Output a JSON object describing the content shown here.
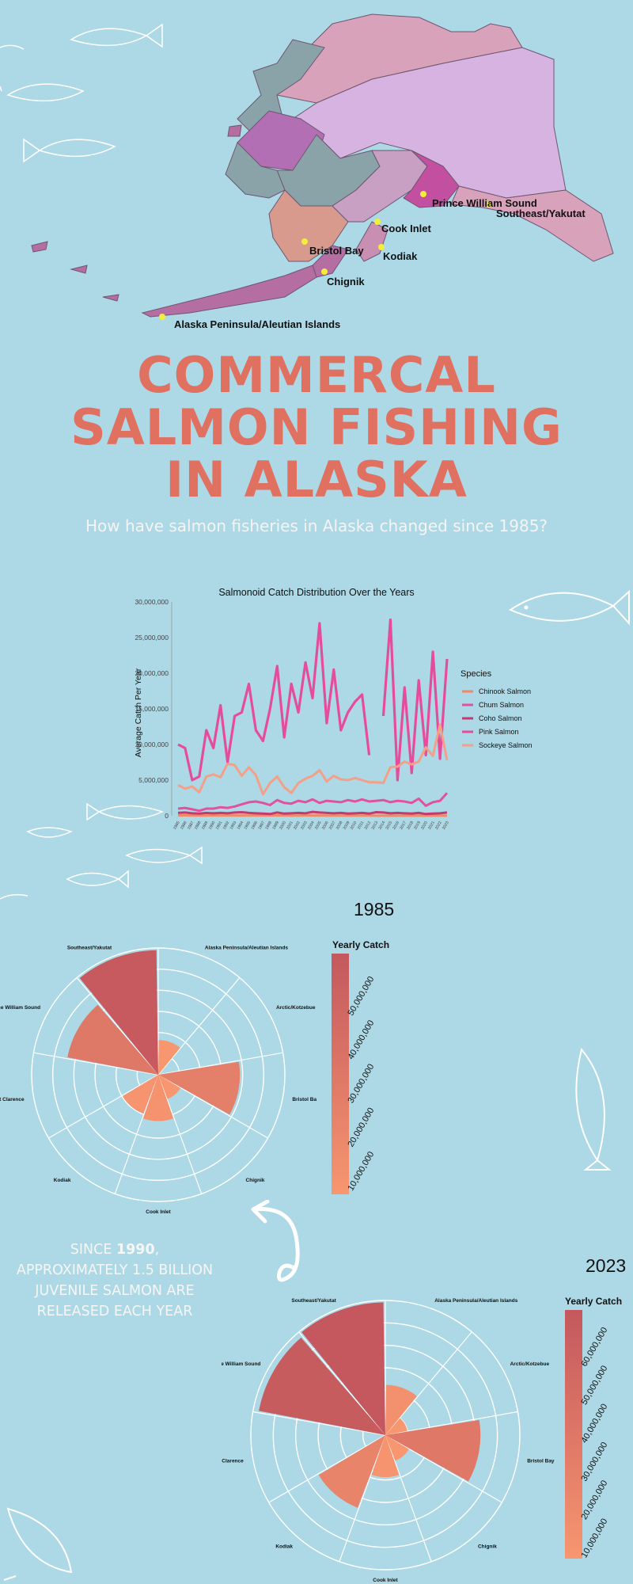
{
  "map": {
    "regions": [
      {
        "name": "Prince William Sound",
        "color": "#c34fa0"
      },
      {
        "name": "Southeast/Yakutat",
        "color": "#d9a2bb"
      },
      {
        "name": "Cook Inlet",
        "color": "#c7a0c4"
      },
      {
        "name": "Bristol Bay",
        "color": "#d99a8e"
      },
      {
        "name": "Kodiak",
        "color": "#c98fb2"
      },
      {
        "name": "Chignik",
        "color": "#b56ea1"
      },
      {
        "name": "Alaska Peninsula/Aleutian Islands",
        "color": "#b56ea1"
      }
    ],
    "marker_color": "#f3ef39"
  },
  "title": {
    "line1": "COMMERCAL",
    "line2": "SALMON FISHING",
    "line3": "IN ALASKA",
    "subtitle": "How have salmon fisheries in Alaska changed since 1985?",
    "color": "#e07060"
  },
  "side_note": {
    "prefix": "SINCE ",
    "year": "1990",
    "rest": ", APPROXIMATELY 1.5 BILLION JUVENILE SALMON ARE RELEASED EACH YEAR"
  },
  "chart_data": [
    {
      "type": "line",
      "title": "Salmonoid Catch Distribution Over the Years",
      "ylabel": "Average Catch Per Year",
      "xlabel": "",
      "legend_title": "Species",
      "legend_position": "right",
      "ylim": [
        0,
        30000000
      ],
      "yticks": [
        "0",
        "5,000,000",
        "10,000,000",
        "15,000,000",
        "20,000,000",
        "25,000,000",
        "30,000,000"
      ],
      "x": [
        1985,
        1986,
        1987,
        1988,
        1989,
        1990,
        1991,
        1992,
        1993,
        1994,
        1995,
        1996,
        1997,
        1998,
        1999,
        2000,
        2001,
        2002,
        2003,
        2004,
        2005,
        2006,
        2007,
        2008,
        2009,
        2010,
        2011,
        2012,
        2013,
        2014,
        2015,
        2016,
        2017,
        2018,
        2019,
        2020,
        2021,
        2022,
        2023
      ],
      "series": [
        {
          "name": "Chinook Salmon",
          "color": "#f08a64",
          "values": [
            60000,
            60000,
            50000,
            50000,
            50000,
            55000,
            50000,
            50000,
            50000,
            45000,
            45000,
            40000,
            45000,
            40000,
            40000,
            40000,
            35000,
            35000,
            40000,
            45000,
            40000,
            30000,
            30000,
            25000,
            25000,
            20000,
            25000,
            20000,
            15000,
            15000,
            15000,
            15000,
            15000,
            10000,
            10000,
            10000,
            10000,
            10000,
            10000
          ]
        },
        {
          "name": "Chum Salmon",
          "color": "#e052a0",
          "values": [
            1000000,
            1100000,
            900000,
            700000,
            1000000,
            1000000,
            1200000,
            1100000,
            1300000,
            1600000,
            1900000,
            2000000,
            1800000,
            1500000,
            2200000,
            1800000,
            1700000,
            2100000,
            1900000,
            2300000,
            1800000,
            2100000,
            2000000,
            1900000,
            2200000,
            2000000,
            2300000,
            2000000,
            2100000,
            2200000,
            1900000,
            2100000,
            2000000,
            1800000,
            2400000,
            1400000,
            1900000,
            2100000,
            3200000
          ]
        },
        {
          "name": "Coho Salmon",
          "color": "#c43a70",
          "values": [
            400000,
            450000,
            350000,
            300000,
            400000,
            350000,
            400000,
            350000,
            450000,
            500000,
            400000,
            350000,
            300000,
            250000,
            450000,
            300000,
            350000,
            400000,
            350000,
            550000,
            450000,
            400000,
            350000,
            400000,
            300000,
            350000,
            400000,
            300000,
            500000,
            450000,
            350000,
            400000,
            350000,
            300000,
            400000,
            250000,
            300000,
            350000,
            450000
          ]
        },
        {
          "name": "Pink Salmon",
          "color": "#e64c9c",
          "values": [
            10000000,
            9500000,
            5000000,
            5500000,
            12000000,
            9500000,
            15500000,
            7500000,
            14000000,
            14500000,
            18500000,
            12000000,
            10500000,
            15000000,
            21000000,
            11000000,
            18500000,
            14500000,
            21500000,
            16500000,
            27000000,
            13000000,
            20500000,
            12000000,
            14500000,
            16000000,
            17000000,
            8500000,
            null,
            14000000,
            27500000,
            5000000,
            18000000,
            6000000,
            19000000,
            8500000,
            23000000,
            8000000,
            22000000
          ]
        },
        {
          "name": "Sockeye Salmon",
          "color": "#f4a088",
          "values": [
            4300000,
            3800000,
            4100000,
            3300000,
            5500000,
            5800000,
            5400000,
            7300000,
            7100000,
            5600000,
            6800000,
            5700000,
            3000000,
            4600000,
            5500000,
            4000000,
            3200000,
            4600000,
            5200000,
            5600000,
            6400000,
            4800000,
            5600000,
            5100000,
            5000000,
            5300000,
            5000000,
            4700000,
            4700000,
            4600000,
            6800000,
            6900000,
            7600000,
            7200000,
            7600000,
            9600000,
            8400000,
            12800000,
            7800000
          ]
        }
      ]
    },
    {
      "type": "polar_bar",
      "title": "1985",
      "legend_title": "Yearly Catch",
      "legend_ticks": [
        "10,000,000",
        "20,000,000",
        "30,000,000",
        "40,000,000",
        "50,000,000"
      ],
      "color_low": "#f7966f",
      "color_high": "#c4585e",
      "range": [
        5000000,
        60000000
      ],
      "categories": [
        "Southeast/Yakutat",
        "Alaska Peninsula/Aleutian Islands",
        "Arctic/Kotzebue",
        "Bristol Bay",
        "Chignik",
        "Cook Inlet",
        "Kodiak",
        "Sound/Port Clarence",
        "Prince William Sound"
      ],
      "values": [
        58000000,
        4500000,
        0,
        25000000,
        2500000,
        8000000,
        6500000,
        0,
        32000000
      ]
    },
    {
      "type": "polar_bar",
      "title": "2023",
      "legend_title": "Yearly Catch",
      "legend_ticks": [
        "10,000,000",
        "20,000,000",
        "30,000,000",
        "40,000,000",
        "50,000,000",
        "60,000,000"
      ],
      "color_low": "#f7966f",
      "color_high": "#c4585e",
      "range": [
        5000000,
        70000000
      ],
      "categories": [
        "Southeast/Yakutat",
        "Alaska Peninsula/Aleutian Islands",
        "Arctic/Kotzebue",
        "Bristol Bay",
        "Chignik",
        "Cook Inlet",
        "Kodiak",
        "Sound/Port Clarence",
        "Prince William Sound"
      ],
      "values": [
        70000000,
        10000000,
        2000000,
        36000000,
        3000000,
        7000000,
        24000000,
        0,
        66000000
      ]
    }
  ]
}
